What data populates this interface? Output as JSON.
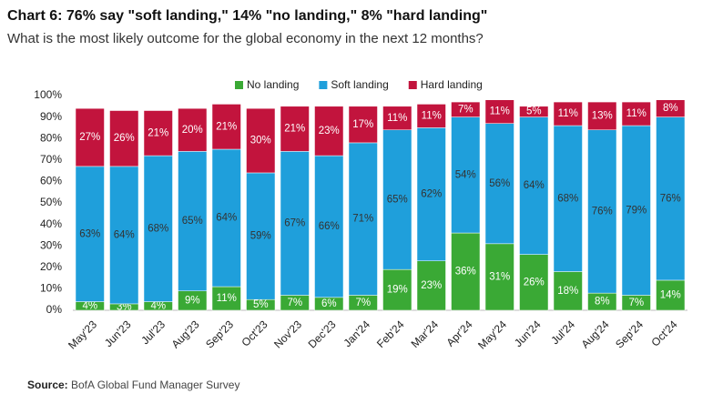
{
  "chart_data": {
    "type": "stacked_bar",
    "title": "Chart 6: 76% say \"soft landing,\" 14% \"no landing,\" 8% \"hard landing\"",
    "subtitle": "What is the most likely outcome for the global economy in the next 12 months?",
    "source_label": "Source:",
    "source": "BofA Global Fund Manager Survey",
    "categories": [
      "May'23",
      "Jun'23",
      "Jul'23",
      "Aug'23",
      "Sep'23",
      "Oct'23",
      "Nov'23",
      "Dec'23",
      "Jan'24",
      "Feb'24",
      "Mar'24",
      "Apr'24",
      "May'24",
      "Jun'24",
      "Jul'24",
      "Aug'24",
      "Sep'24",
      "Oct'24"
    ],
    "series": [
      {
        "name": "No landing",
        "color": "#3aa935",
        "values": [
          4,
          3,
          4,
          9,
          11,
          5,
          7,
          6,
          7,
          19,
          23,
          36,
          31,
          26,
          18,
          8,
          7,
          14
        ],
        "value_labels": [
          "4%",
          "3%",
          "4%",
          "9%",
          "11%",
          "5%",
          "7%",
          "6%",
          "7%",
          "19%",
          "23%",
          "36%",
          "31%",
          "26%",
          "18%",
          "8%",
          "7%",
          "14%"
        ]
      },
      {
        "name": "Soft landing",
        "color": "#1f9fdb",
        "values": [
          63,
          64,
          68,
          65,
          64,
          59,
          67,
          66,
          71,
          65,
          62,
          54,
          56,
          64,
          68,
          76,
          79,
          76
        ],
        "value_labels": [
          "63%",
          "64%",
          "68%",
          "65%",
          "64%",
          "59%",
          "67%",
          "66%",
          "71%",
          "65%",
          "62%",
          "54%",
          "56%",
          "64%",
          "68%",
          "76%",
          "79%",
          "76%"
        ]
      },
      {
        "name": "Hard landing",
        "color": "#c2143d",
        "values": [
          27,
          26,
          21,
          20,
          21,
          30,
          21,
          23,
          17,
          11,
          11,
          7,
          11,
          5,
          11,
          13,
          11,
          8
        ],
        "value_labels": [
          "27%",
          "26%",
          "21%",
          "20%",
          "21%",
          "30%",
          "21%",
          "23%",
          "17%",
          "11%",
          "11%",
          "7%",
          "11%",
          "5%",
          "11%",
          "13%",
          "11%",
          "8%"
        ]
      }
    ],
    "ylim": [
      0,
      100
    ],
    "yticks": [
      {
        "value": 0,
        "label": "0%"
      },
      {
        "value": 10,
        "label": "10%"
      },
      {
        "value": 20,
        "label": "20%"
      },
      {
        "value": 30,
        "label": "30%"
      },
      {
        "value": 40,
        "label": "40%"
      },
      {
        "value": 50,
        "label": "50%"
      },
      {
        "value": 60,
        "label": "60%"
      },
      {
        "value": 70,
        "label": "70%"
      },
      {
        "value": 80,
        "label": "80%"
      },
      {
        "value": 90,
        "label": "90%"
      },
      {
        "value": 100,
        "label": "100%"
      }
    ],
    "grid": false
  }
}
